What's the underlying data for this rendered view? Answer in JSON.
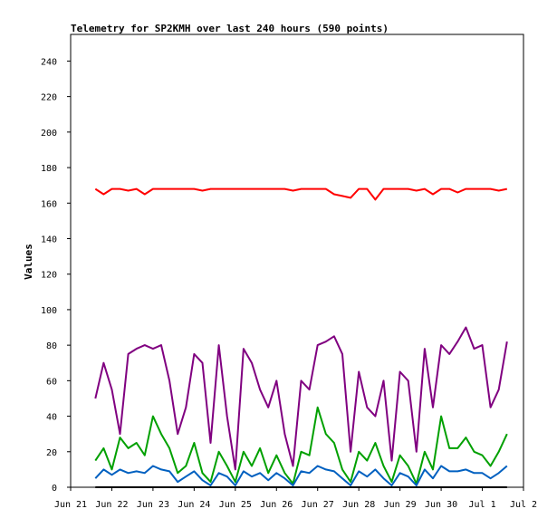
{
  "chart_data": {
    "type": "line",
    "title": "Telemetry for SP2KMH over last 240 hours (590 points)",
    "xlabel": "",
    "ylabel": "Values",
    "ylim": [
      0,
      255
    ],
    "yticks": [
      0,
      20,
      40,
      60,
      80,
      100,
      120,
      140,
      160,
      180,
      200,
      220,
      240
    ],
    "xlim": [
      "Jun 21",
      "Jul 2"
    ],
    "xtick_labels": [
      "Jun 21",
      "Jun 22",
      "Jun 23",
      "Jun 24",
      "Jun 25",
      "Jun 26",
      "Jun 27",
      "Jun 28",
      "Jun 29",
      "Jun 30",
      "Jul 1",
      "Jul 2"
    ],
    "grid": false,
    "legend": "none",
    "x_days": [
      0.6,
      0.8,
      1.0,
      1.2,
      1.4,
      1.6,
      1.8,
      2.0,
      2.2,
      2.4,
      2.6,
      2.8,
      3.0,
      3.2,
      3.4,
      3.6,
      3.8,
      4.0,
      4.2,
      4.4,
      4.6,
      4.8,
      5.0,
      5.2,
      5.4,
      5.6,
      5.8,
      6.0,
      6.2,
      6.4,
      6.6,
      6.8,
      7.0,
      7.2,
      7.4,
      7.6,
      7.8,
      8.0,
      8.2,
      8.4,
      8.6,
      8.8,
      9.0,
      9.2,
      9.4,
      9.6,
      9.8,
      10.0,
      10.2,
      10.4,
      10.6
    ],
    "series": [
      {
        "color": "#ff0000",
        "values": [
          168,
          165,
          168,
          168,
          167,
          168,
          165,
          168,
          168,
          168,
          168,
          168,
          168,
          167,
          168,
          168,
          168,
          168,
          168,
          168,
          168,
          168,
          168,
          168,
          167,
          168,
          168,
          168,
          168,
          165,
          164,
          163,
          168,
          168,
          162,
          168,
          168,
          168,
          168,
          167,
          168,
          165,
          168,
          168,
          166,
          168,
          168,
          168,
          168,
          167,
          168
        ]
      },
      {
        "color": "#800080",
        "values": [
          50,
          70,
          55,
          30,
          75,
          78,
          80,
          78,
          80,
          60,
          30,
          45,
          75,
          70,
          25,
          80,
          40,
          10,
          78,
          70,
          55,
          45,
          60,
          30,
          12,
          60,
          55,
          80,
          82,
          85,
          75,
          20,
          65,
          45,
          40,
          60,
          15,
          65,
          60,
          20,
          78,
          45,
          80,
          75,
          82,
          90,
          78,
          80,
          45,
          55,
          82
        ]
      },
      {
        "color": "#00a000",
        "values": [
          15,
          22,
          10,
          28,
          22,
          25,
          18,
          40,
          30,
          22,
          8,
          12,
          25,
          8,
          3,
          20,
          12,
          3,
          20,
          12,
          22,
          8,
          18,
          8,
          2,
          20,
          18,
          45,
          30,
          25,
          10,
          3,
          20,
          15,
          25,
          12,
          3,
          18,
          12,
          2,
          20,
          10,
          40,
          22,
          22,
          28,
          20,
          18,
          12,
          20,
          30
        ]
      },
      {
        "color": "#0060c0",
        "values": [
          5,
          10,
          7,
          10,
          8,
          9,
          8,
          12,
          10,
          9,
          3,
          6,
          9,
          4,
          1,
          8,
          6,
          1,
          9,
          6,
          8,
          4,
          8,
          5,
          1,
          9,
          8,
          12,
          10,
          9,
          5,
          1,
          9,
          6,
          10,
          5,
          1,
          8,
          6,
          1,
          10,
          5,
          12,
          9,
          9,
          10,
          8,
          8,
          5,
          8,
          12
        ]
      },
      {
        "color": "#000000",
        "values": [
          0,
          0,
          0,
          0,
          0,
          0,
          0,
          0,
          0,
          0,
          0,
          0,
          0,
          0,
          0,
          0,
          0,
          0,
          0,
          0,
          0,
          0,
          0,
          0,
          0,
          0,
          0,
          0,
          0,
          0,
          0,
          0,
          0,
          0,
          0,
          0,
          0,
          0,
          0,
          0,
          0,
          0,
          0,
          0,
          0,
          0,
          0,
          0,
          0,
          0,
          0
        ]
      }
    ]
  }
}
